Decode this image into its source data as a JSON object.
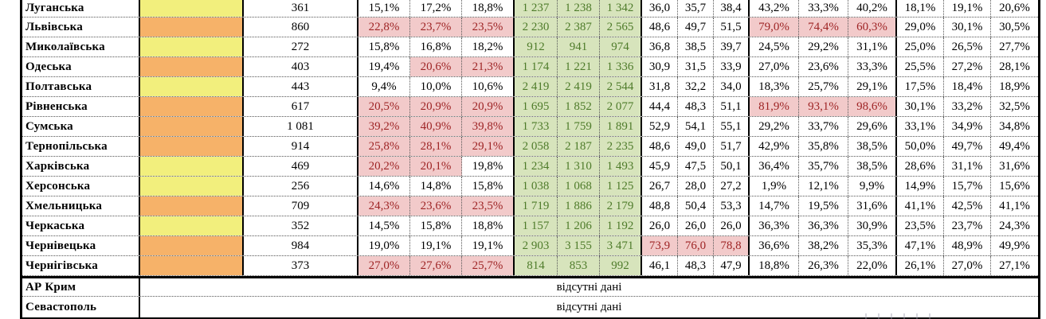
{
  "colors": {
    "yellow": "#F2EF7D",
    "orange": "#F6B269",
    "pink_bg": "#F2CACA",
    "red_text": "#9E2425",
    "green_bg": "#D7E4BC",
    "green_text": "#4E7B2A",
    "border": "#000000"
  },
  "table": {
    "missing_data_label": "відсутні дані",
    "rows": [
      {
        "name": "Луганська",
        "fill": "yellow",
        "count": "361",
        "pct1": [
          "15,1%",
          "17,2%",
          "18,8%"
        ],
        "abs": [
          "1 237",
          "1 238",
          "1 342"
        ],
        "dec": [
          "36,0",
          "35,7",
          "38,4"
        ],
        "pct2": [
          "43,2%",
          "33,3%",
          "40,2%"
        ],
        "pct3": [
          "18,1%",
          "19,1%",
          "20,6%"
        ]
      },
      {
        "name": "Львівська",
        "fill": "orange",
        "count": "860",
        "pct1": [
          "22,8%",
          "23,7%",
          "23,5%"
        ],
        "pct1_hl": [
          true,
          true,
          true
        ],
        "abs": [
          "2 230",
          "2 387",
          "2 565"
        ],
        "dec": [
          "48,6",
          "49,7",
          "51,5"
        ],
        "pct2": [
          "79,0%",
          "74,4%",
          "60,3%"
        ],
        "pct2_hl": [
          true,
          true,
          true
        ],
        "pct3": [
          "29,0%",
          "30,1%",
          "30,5%"
        ]
      },
      {
        "name": "Миколаївська",
        "fill": "yellow",
        "count": "272",
        "pct1": [
          "15,8%",
          "16,8%",
          "18,2%"
        ],
        "abs": [
          "912",
          "941",
          "974"
        ],
        "dec": [
          "36,8",
          "38,5",
          "39,7"
        ],
        "pct2": [
          "24,5%",
          "29,2%",
          "31,1%"
        ],
        "pct3": [
          "25,0%",
          "26,5%",
          "27,7%"
        ]
      },
      {
        "name": "Одеська",
        "fill": "orange",
        "count": "403",
        "pct1": [
          "19,4%",
          "20,6%",
          "21,3%"
        ],
        "pct1_hl": [
          false,
          true,
          true
        ],
        "abs": [
          "1 174",
          "1 221",
          "1 336"
        ],
        "dec": [
          "30,9",
          "31,5",
          "33,9"
        ],
        "pct2": [
          "27,0%",
          "23,6%",
          "33,3%"
        ],
        "pct3": [
          "25,5%",
          "27,2%",
          "28,1%"
        ]
      },
      {
        "name": "Полтавська",
        "fill": "yellow",
        "count": "443",
        "pct1": [
          "9,4%",
          "10,0%",
          "10,6%"
        ],
        "abs": [
          "2 419",
          "2 419",
          "2 544"
        ],
        "dec": [
          "31,8",
          "32,2",
          "34,0"
        ],
        "pct2": [
          "18,3%",
          "25,7%",
          "29,1%"
        ],
        "pct3": [
          "17,5%",
          "18,4%",
          "18,9%"
        ]
      },
      {
        "name": "Рівненська",
        "fill": "orange",
        "count": "617",
        "pct1": [
          "20,5%",
          "20,9%",
          "20,9%"
        ],
        "pct1_hl": [
          true,
          true,
          true
        ],
        "abs": [
          "1 695",
          "1 852",
          "2 077"
        ],
        "dec": [
          "44,4",
          "48,3",
          "51,1"
        ],
        "pct2": [
          "81,9%",
          "93,1%",
          "98,6%"
        ],
        "pct2_hl": [
          true,
          true,
          true
        ],
        "pct3": [
          "30,1%",
          "33,2%",
          "32,5%"
        ]
      },
      {
        "name": "Сумська",
        "fill": "orange",
        "count": "1 081",
        "pct1": [
          "39,2%",
          "40,9%",
          "39,8%"
        ],
        "pct1_hl": [
          true,
          true,
          true
        ],
        "abs": [
          "1 733",
          "1 759",
          "1 891"
        ],
        "dec": [
          "52,9",
          "54,1",
          "55,1"
        ],
        "pct2": [
          "29,2%",
          "33,7%",
          "29,6%"
        ],
        "pct3": [
          "33,1%",
          "34,9%",
          "34,8%"
        ]
      },
      {
        "name": "Тернопільська",
        "fill": "orange",
        "count": "914",
        "pct1": [
          "25,8%",
          "28,1%",
          "29,1%"
        ],
        "pct1_hl": [
          true,
          true,
          true
        ],
        "abs": [
          "2 058",
          "2 187",
          "2 235"
        ],
        "dec": [
          "48,6",
          "49,0",
          "51,7"
        ],
        "pct2": [
          "42,9%",
          "35,8%",
          "38,5%"
        ],
        "pct3": [
          "50,0%",
          "49,7%",
          "49,4%"
        ]
      },
      {
        "name": "Харківська",
        "fill": "yellow",
        "count": "469",
        "pct1": [
          "20,2%",
          "20,1%",
          "19,8%"
        ],
        "pct1_hl": [
          true,
          true,
          false
        ],
        "abs": [
          "1 234",
          "1 310",
          "1 493"
        ],
        "dec": [
          "45,9",
          "47,5",
          "50,1"
        ],
        "pct2": [
          "36,4%",
          "35,7%",
          "38,5%"
        ],
        "pct3": [
          "28,6%",
          "31,1%",
          "31,6%"
        ]
      },
      {
        "name": "Херсонська",
        "fill": "yellow",
        "count": "256",
        "pct1": [
          "14,6%",
          "14,8%",
          "15,8%"
        ],
        "abs": [
          "1 038",
          "1 068",
          "1 125"
        ],
        "dec": [
          "26,7",
          "28,0",
          "27,2"
        ],
        "pct2": [
          "1,9%",
          "12,1%",
          "9,9%"
        ],
        "pct3": [
          "14,9%",
          "15,7%",
          "15,6%"
        ]
      },
      {
        "name": "Хмельницька",
        "fill": "orange",
        "count": "709",
        "pct1": [
          "24,3%",
          "23,6%",
          "23,5%"
        ],
        "pct1_hl": [
          true,
          true,
          true
        ],
        "abs": [
          "1 719",
          "1 886",
          "2 179"
        ],
        "dec": [
          "48,8",
          "50,4",
          "53,3"
        ],
        "pct2": [
          "14,7%",
          "19,5%",
          "31,6%"
        ],
        "pct3": [
          "41,1%",
          "42,5%",
          "41,1%"
        ]
      },
      {
        "name": "Черкаська",
        "fill": "yellow",
        "count": "352",
        "pct1": [
          "14,5%",
          "15,8%",
          "18,8%"
        ],
        "abs": [
          "1 157",
          "1 206",
          "1 192"
        ],
        "dec": [
          "26,0",
          "26,0",
          "26,0"
        ],
        "pct2": [
          "36,3%",
          "36,3%",
          "30,9%"
        ],
        "pct3": [
          "23,5%",
          "23,7%",
          "24,3%"
        ]
      },
      {
        "name": "Чернівецька",
        "fill": "orange",
        "count": "984",
        "pct1": [
          "19,0%",
          "19,1%",
          "19,1%"
        ],
        "abs": [
          "2 903",
          "3 155",
          "3 471"
        ],
        "dec": [
          "73,9",
          "76,0",
          "78,8"
        ],
        "dec_hl": [
          true,
          true,
          true
        ],
        "pct2": [
          "36,6%",
          "38,2%",
          "35,3%"
        ],
        "pct3": [
          "47,1%",
          "48,9%",
          "49,9%"
        ]
      },
      {
        "name": "Чернігівська",
        "fill": "orange",
        "count": "373",
        "pct1": [
          "27,0%",
          "27,6%",
          "25,7%"
        ],
        "pct1_hl": [
          true,
          true,
          true
        ],
        "abs": [
          "814",
          "853",
          "992"
        ],
        "dec": [
          "46,1",
          "48,3",
          "47,9"
        ],
        "pct2": [
          "18,8%",
          "26,3%",
          "22,0%"
        ],
        "pct3": [
          "26,1%",
          "27,0%",
          "27,1%"
        ]
      },
      {
        "name": "АР Крим",
        "merged": true
      },
      {
        "name": "Севастополь",
        "merged": true
      }
    ]
  }
}
